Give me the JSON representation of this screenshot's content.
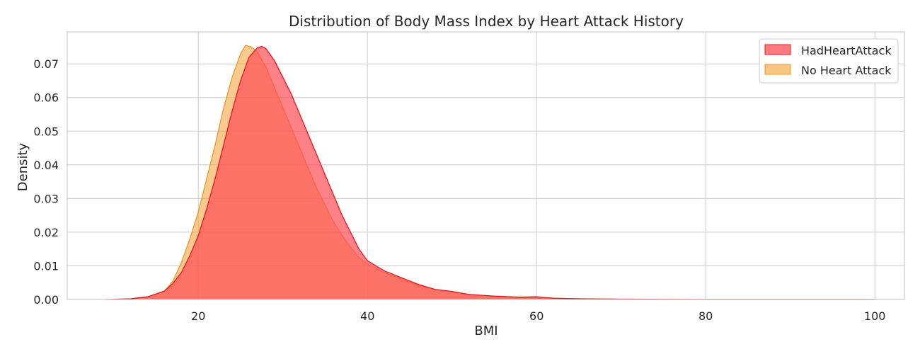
{
  "chart_data": {
    "type": "area",
    "title": "Distribution of Body Mass Index by Heart Attack History",
    "xlabel": "BMI",
    "ylabel": "Density",
    "xlim": [
      4.5,
      103.5
    ],
    "ylim": [
      0,
      0.0795
    ],
    "x_ticks": [
      20,
      40,
      60,
      80,
      100
    ],
    "y_ticks": [
      0.0,
      0.01,
      0.02,
      0.03,
      0.04,
      0.05,
      0.06,
      0.07
    ],
    "x_tick_labels": [
      "20",
      "40",
      "60",
      "80",
      "100"
    ],
    "y_tick_labels": [
      "0.00",
      "0.01",
      "0.02",
      "0.03",
      "0.04",
      "0.05",
      "0.06",
      "0.07"
    ],
    "grid": true,
    "legend_position": "top-right",
    "series": [
      {
        "name": "No Heart Attack",
        "fill_color": "#f5a742",
        "line_color": "#e69a2a",
        "fill_opacity": 0.6,
        "points": [
          [
            10,
            0.0
          ],
          [
            12,
            0.0002
          ],
          [
            14,
            0.0008
          ],
          [
            16,
            0.0025
          ],
          [
            17,
            0.0055
          ],
          [
            18,
            0.011
          ],
          [
            19,
            0.018
          ],
          [
            20,
            0.026
          ],
          [
            21,
            0.036
          ],
          [
            22,
            0.046
          ],
          [
            23,
            0.057
          ],
          [
            24,
            0.066
          ],
          [
            25,
            0.073
          ],
          [
            25.6,
            0.0755
          ],
          [
            26.3,
            0.075
          ],
          [
            27,
            0.0735
          ],
          [
            28,
            0.069
          ],
          [
            29,
            0.063
          ],
          [
            30,
            0.057
          ],
          [
            31,
            0.051
          ],
          [
            32,
            0.045
          ],
          [
            33,
            0.039
          ],
          [
            34,
            0.033
          ],
          [
            35,
            0.028
          ],
          [
            36,
            0.023
          ],
          [
            37,
            0.019
          ],
          [
            38,
            0.0155
          ],
          [
            39,
            0.0125
          ],
          [
            40,
            0.0105
          ],
          [
            42,
            0.008
          ],
          [
            44,
            0.006
          ],
          [
            46,
            0.0042
          ],
          [
            48,
            0.003
          ],
          [
            50,
            0.0022
          ],
          [
            52,
            0.0015
          ],
          [
            55,
            0.001
          ],
          [
            58,
            0.0006
          ],
          [
            60,
            0.0004
          ],
          [
            65,
            0.0002
          ],
          [
            70,
            0.0001
          ],
          [
            80,
            0.0
          ],
          [
            90,
            0.0
          ],
          [
            100,
            0.0
          ]
        ]
      },
      {
        "name": "HadHeartAttack",
        "fill_color": "#ff4d55",
        "line_color": "#e8141c",
        "fill_opacity": 0.7,
        "points": [
          [
            9,
            0.0
          ],
          [
            12,
            0.0002
          ],
          [
            14,
            0.0008
          ],
          [
            16,
            0.0025
          ],
          [
            17,
            0.0048
          ],
          [
            18,
            0.008
          ],
          [
            19,
            0.013
          ],
          [
            20,
            0.019
          ],
          [
            21,
            0.027
          ],
          [
            22,
            0.036
          ],
          [
            23,
            0.046
          ],
          [
            24,
            0.056
          ],
          [
            25,
            0.065
          ],
          [
            26,
            0.072
          ],
          [
            27,
            0.0748
          ],
          [
            27.5,
            0.0752
          ],
          [
            28,
            0.0745
          ],
          [
            29,
            0.071
          ],
          [
            30,
            0.066
          ],
          [
            31,
            0.061
          ],
          [
            32,
            0.055
          ],
          [
            33,
            0.049
          ],
          [
            34,
            0.043
          ],
          [
            35,
            0.037
          ],
          [
            36,
            0.031
          ],
          [
            37,
            0.025
          ],
          [
            38,
            0.02
          ],
          [
            39,
            0.015
          ],
          [
            40,
            0.0115
          ],
          [
            42,
            0.0085
          ],
          [
            44,
            0.0065
          ],
          [
            46,
            0.0045
          ],
          [
            48,
            0.003
          ],
          [
            50,
            0.0024
          ],
          [
            52,
            0.0015
          ],
          [
            55,
            0.001
          ],
          [
            58,
            0.0007
          ],
          [
            60,
            0.0008
          ],
          [
            62,
            0.0004
          ],
          [
            65,
            0.0002
          ],
          [
            70,
            0.0001
          ],
          [
            80,
            0.0
          ],
          [
            90,
            0.0
          ],
          [
            100,
            0.0
          ]
        ]
      }
    ]
  }
}
